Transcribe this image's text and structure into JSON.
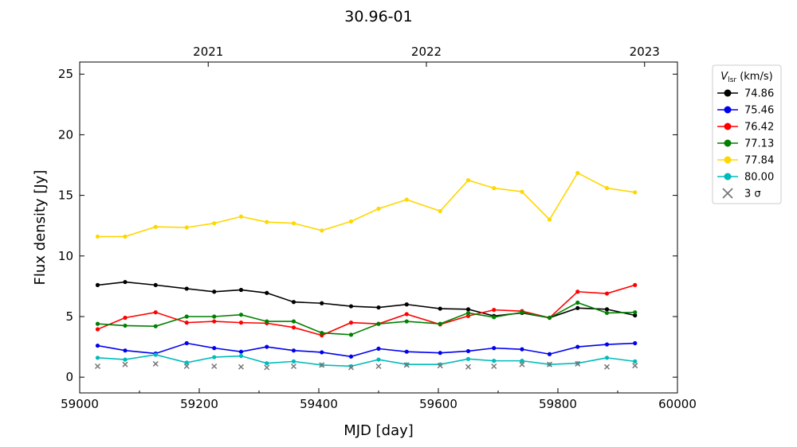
{
  "chart_data": {
    "type": "line",
    "title": "30.96-01",
    "xlabel": "MJD [day]",
    "ylabel": "Flux density [Jy]",
    "xlim": [
      59000,
      60000
    ],
    "ylim": [
      -1.3,
      26
    ],
    "x_ticks": [
      59000,
      59200,
      59400,
      59600,
      59800,
      60000
    ],
    "y_ticks": [
      0,
      5,
      10,
      15,
      20,
      25
    ],
    "top_axis": {
      "ticks": [
        {
          "label": "2021",
          "x": 59215
        },
        {
          "label": "2022",
          "x": 59580
        },
        {
          "label": "2023",
          "x": 59945
        }
      ]
    },
    "grid": false,
    "legend": {
      "placement": "outside-right",
      "title_main": "V",
      "title_sub": "lsr",
      "title_unit": " (km/s)"
    },
    "x": [
      59030,
      59076,
      59127,
      59179,
      59225,
      59270,
      59313,
      59358,
      59405,
      59454,
      59500,
      59547,
      59603,
      59650,
      59693,
      59740,
      59786,
      59833,
      59882,
      59929
    ],
    "series": [
      {
        "name": "74.86",
        "color": "#000000",
        "values": [
          7.6,
          7.85,
          7.6,
          7.3,
          7.05,
          7.2,
          6.95,
          6.2,
          6.1,
          5.85,
          5.75,
          6.0,
          5.65,
          5.6,
          5.05,
          5.3,
          4.9,
          5.7,
          5.6,
          5.1
        ]
      },
      {
        "name": "75.46",
        "color": "#0000ee",
        "values": [
          2.6,
          2.2,
          1.95,
          2.8,
          2.4,
          2.1,
          2.5,
          2.2,
          2.05,
          1.7,
          2.35,
          2.1,
          2.0,
          2.15,
          2.4,
          2.3,
          1.9,
          2.5,
          2.7,
          2.8
        ]
      },
      {
        "name": "76.42",
        "color": "#ff0000",
        "values": [
          3.95,
          4.9,
          5.35,
          4.5,
          4.6,
          4.5,
          4.45,
          4.1,
          3.45,
          4.5,
          4.4,
          5.2,
          4.35,
          5.05,
          5.55,
          5.45,
          4.9,
          7.05,
          6.9,
          7.6
        ]
      },
      {
        "name": "77.13",
        "color": "#008000",
        "values": [
          4.4,
          4.25,
          4.2,
          5.0,
          5.0,
          5.15,
          4.6,
          4.6,
          3.65,
          3.5,
          4.4,
          4.6,
          4.4,
          5.3,
          4.95,
          5.35,
          4.9,
          6.15,
          5.3,
          5.35
        ]
      },
      {
        "name": "77.84",
        "color": "#ffd700",
        "values": [
          11.6,
          11.6,
          12.4,
          12.35,
          12.7,
          13.25,
          12.8,
          12.7,
          12.1,
          12.85,
          13.9,
          14.65,
          13.7,
          16.25,
          15.6,
          15.3,
          13.0,
          16.85,
          15.6,
          15.25
        ]
      },
      {
        "name": "80.00",
        "color": "#00bbbb",
        "values": [
          1.6,
          1.45,
          1.85,
          1.2,
          1.65,
          1.75,
          1.15,
          1.3,
          1.0,
          0.9,
          1.45,
          1.05,
          1.05,
          1.5,
          1.35,
          1.35,
          1.05,
          1.15,
          1.6,
          1.3
        ]
      }
    ],
    "sigma": {
      "name": "3 σ",
      "color": "#777777",
      "x": [
        59030,
        59076,
        59127,
        59179,
        59225,
        59270,
        59313,
        59358,
        59405,
        59454,
        59500,
        59547,
        59603,
        59650,
        59693,
        59740,
        59786,
        59833,
        59882,
        59929
      ],
      "values": [
        0.9,
        1.05,
        1.1,
        0.9,
        0.9,
        0.85,
        0.8,
        0.9,
        1.0,
        0.8,
        0.9,
        1.0,
        0.95,
        0.85,
        0.9,
        1.05,
        1.05,
        1.1,
        0.85,
        0.95
      ]
    }
  }
}
